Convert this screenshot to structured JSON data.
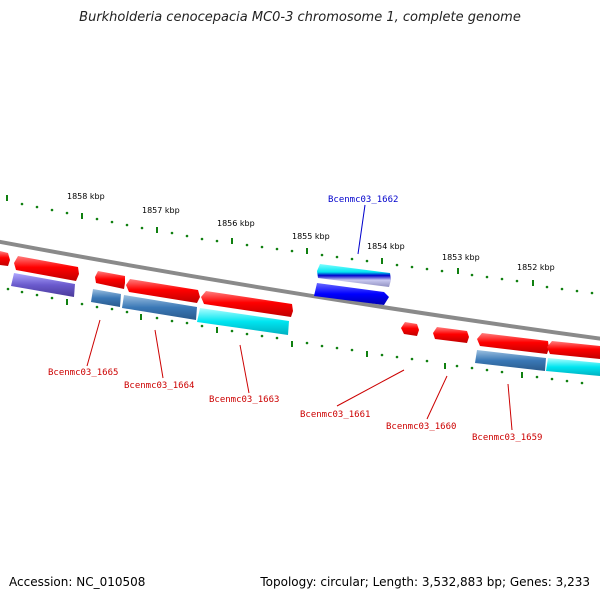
{
  "title": "Burkholderia cenocepacia MC0-3 chromosome 1, complete genome",
  "footer": {
    "accession": "Accession: NC_010508",
    "topology": "Topology: circular; Length: 3,532,883 bp; Genes: 3,233"
  },
  "colors": {
    "forward_gene": "#ff0000",
    "reverse_gene": "#3a78b6",
    "reverse_gene_alt": "#00d8e8",
    "highlight_gene": "#1a1aff",
    "backbone": "#888888",
    "tick": "#108010",
    "label_forward": "#cc0000",
    "label_highlight": "#0000cc"
  },
  "scale_labels": [
    "1858 kbp",
    "1857 kbp",
    "1856 kbp",
    "1855 kbp",
    "1854 kbp",
    "1853 kbp",
    "1852 kbp"
  ],
  "gene_labels": [
    {
      "text": "Bcenmc03_1662",
      "color": "highlight"
    },
    {
      "text": "Bcenmc03_1665",
      "color": "forward"
    },
    {
      "text": "Bcenmc03_1664",
      "color": "forward"
    },
    {
      "text": "Bcenmc03_1663",
      "color": "forward"
    },
    {
      "text": "Bcenmc03_1661",
      "color": "forward"
    },
    {
      "text": "Bcenmc03_1660",
      "color": "forward"
    },
    {
      "text": "Bcenmc03_1659",
      "color": "forward"
    }
  ]
}
